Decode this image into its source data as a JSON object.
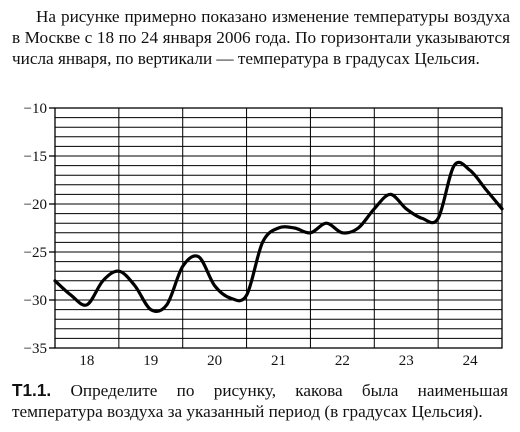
{
  "intro_text": "На рисунке примерно показано изменение температуры воздуха в Москве с 18 по 24 января 2006 года. По горизонтали указываются числа января, по вертикали — температура в градусах Цельсия.",
  "question": {
    "label": "Т1.1.",
    "text": "Определите по рисунку, какова была наименьшая температура воздуха за указанный период (в градусах Цельсия)."
  },
  "chart_data": {
    "type": "line",
    "title": "",
    "xlabel": "",
    "ylabel": "",
    "categories": [
      "18",
      "19",
      "20",
      "21",
      "22",
      "23",
      "24"
    ],
    "xlim": [
      18,
      25
    ],
    "ylim": [
      -35,
      -10
    ],
    "yticks": [
      -35,
      -30,
      -25,
      -20,
      -15,
      -10
    ],
    "grid": true,
    "series": [
      {
        "x": [
          18.0,
          18.25,
          18.5,
          18.75,
          19.0,
          19.25,
          19.5,
          19.75,
          20.0,
          20.25,
          20.5,
          20.75,
          21.0,
          21.25,
          21.5,
          21.75,
          22.0,
          22.25,
          22.5,
          22.75,
          23.0,
          23.25,
          23.5,
          23.75,
          24.0,
          24.25,
          24.5,
          24.75,
          25.0
        ],
        "y": [
          -28.0,
          -29.5,
          -30.5,
          -28.0,
          -27.0,
          -28.5,
          -31.0,
          -30.5,
          -26.5,
          -25.5,
          -28.5,
          -29.8,
          -29.5,
          -24.0,
          -22.5,
          -22.5,
          -23.0,
          -22.0,
          -23.0,
          -22.5,
          -20.5,
          -19.0,
          -20.5,
          -21.5,
          -21.5,
          -16.0,
          -16.5,
          -18.5,
          -20.5
        ]
      }
    ]
  }
}
